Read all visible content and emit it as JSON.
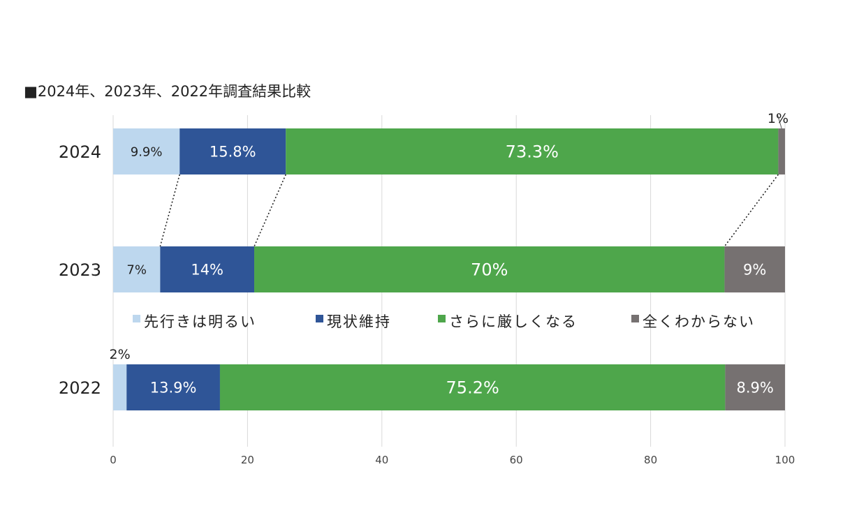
{
  "chart_data": {
    "type": "bar",
    "orientation": "horizontal",
    "stacked": true,
    "title": "■2024年、2023年、2022年調査結果比較",
    "categories": [
      "2024",
      "2023",
      "2022"
    ],
    "series": [
      {
        "name": "先行きは明るい",
        "color": "#bdd7ee",
        "values": [
          9.9,
          7,
          2
        ],
        "labels": [
          "9.9%",
          "7%",
          "2%"
        ]
      },
      {
        "name": "現状維持",
        "color": "#2f5597",
        "values": [
          15.8,
          14,
          13.9
        ],
        "labels": [
          "15.8%",
          "14%",
          "13.9%"
        ]
      },
      {
        "name": "さらに厳しくなる",
        "color": "#4ea64b",
        "values": [
          73.3,
          70,
          75.2
        ],
        "labels": [
          "73.3%",
          "70%",
          "75.2%"
        ]
      },
      {
        "name": "全くわからない",
        "color": "#767171",
        "values": [
          1,
          9,
          8.9
        ],
        "labels": [
          "1%",
          "9%",
          "8.9%"
        ]
      }
    ],
    "xlim": [
      0,
      100
    ],
    "xticks": [
      "0",
      "20",
      "40",
      "60",
      "80",
      "100"
    ],
    "grid": true,
    "legend_position": "between 2023 and 2022 bars",
    "series_lines": true
  }
}
